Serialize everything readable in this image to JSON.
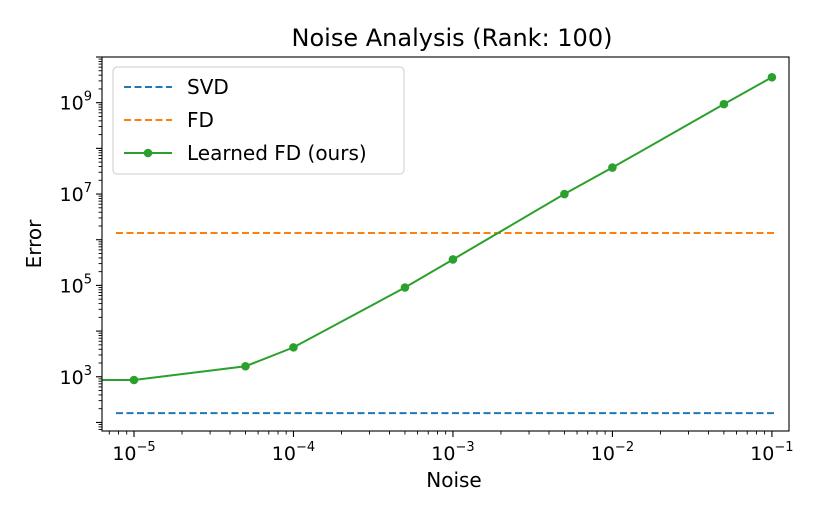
{
  "chart_data": {
    "type": "line",
    "title": "Noise Analysis (Rank: 100)",
    "xlabel": "Noise",
    "ylabel": "Error",
    "xscale": "log",
    "yscale": "log",
    "xlim": [
      6.3e-06,
      0.128
    ],
    "ylim": [
      65,
      10000000000.0
    ],
    "x_ticks": [
      {
        "value": 1e-05,
        "base": "10",
        "exp": "−5"
      },
      {
        "value": 0.0001,
        "base": "10",
        "exp": "−4"
      },
      {
        "value": 0.001,
        "base": "10",
        "exp": "−3"
      },
      {
        "value": 0.01,
        "base": "10",
        "exp": "−2"
      },
      {
        "value": 0.1,
        "base": "10",
        "exp": "−1"
      }
    ],
    "y_ticks": [
      {
        "value": 1000.0,
        "base": "10",
        "exp": "3"
      },
      {
        "value": 100000.0,
        "base": "10",
        "exp": "5"
      },
      {
        "value": 10000000.0,
        "base": "10",
        "exp": "7"
      },
      {
        "value": 1000000000.0,
        "base": "10",
        "exp": "9"
      }
    ],
    "legend_position": "top-left",
    "series": [
      {
        "name": "SVD",
        "style": "dashed",
        "color": "#1f77b4",
        "constant": 160
      },
      {
        "name": "FD",
        "style": "dashed",
        "color": "#ff7f0e",
        "constant": 1400000.0
      },
      {
        "name": "Learned FD (ours)",
        "style": "solid-marker",
        "color": "#2ca02c",
        "x": [
          1e-05,
          5e-05,
          0.0001,
          0.0005,
          0.001,
          0.005,
          0.01,
          0.05,
          0.1
        ],
        "y": [
          850,
          1700,
          4400,
          90000,
          370000,
          10000000.0,
          38000000.0,
          930000000.0,
          3600000000.0
        ]
      }
    ]
  }
}
